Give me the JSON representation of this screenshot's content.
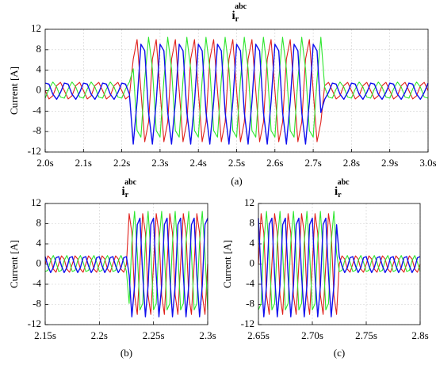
{
  "chart_data": [
    {
      "type": "line",
      "title": {
        "main": "i",
        "sub": "r",
        "sup": "abc"
      },
      "ylabel": "Current [A]",
      "caption": "(a)",
      "xlim": [
        2.0,
        3.0
      ],
      "ylim": [
        -12,
        12
      ],
      "grid": true,
      "xticks": [
        {
          "value": 2.0,
          "label": "2.0s"
        },
        {
          "value": 2.1,
          "label": "2.1s"
        },
        {
          "value": 2.2,
          "label": "2.2s"
        },
        {
          "value": 2.3,
          "label": "2.3s"
        },
        {
          "value": 2.4,
          "label": "2.4s"
        },
        {
          "value": 2.5,
          "label": "2.5s"
        },
        {
          "value": 2.6,
          "label": "2.6s"
        },
        {
          "value": 2.7,
          "label": "2.7s"
        },
        {
          "value": 2.8,
          "label": "2.8s"
        },
        {
          "value": 2.9,
          "label": "2.9s"
        },
        {
          "value": 3.0,
          "label": "3.0s"
        }
      ],
      "yticks": [
        -12,
        -8,
        -4,
        0,
        4,
        8,
        12
      ],
      "x": [
        2.0,
        2.01,
        2.02,
        2.03,
        2.04,
        2.05,
        2.06,
        2.07,
        2.08,
        2.09,
        2.1,
        2.11,
        2.12,
        2.13,
        2.14,
        2.15,
        2.16,
        2.17,
        2.18,
        2.19,
        2.2,
        2.21,
        2.22,
        2.23,
        2.24,
        2.25,
        2.26,
        2.27,
        2.28,
        2.29,
        2.3,
        2.31,
        2.32,
        2.33,
        2.34,
        2.35,
        2.36,
        2.37,
        2.38,
        2.39,
        2.4,
        2.41,
        2.42,
        2.43,
        2.44,
        2.45,
        2.46,
        2.47,
        2.48,
        2.49,
        2.5,
        2.51,
        2.52,
        2.53,
        2.54,
        2.55,
        2.56,
        2.57,
        2.58,
        2.59,
        2.6,
        2.61,
        2.62,
        2.63,
        2.64,
        2.65,
        2.66,
        2.67,
        2.68,
        2.69,
        2.7,
        2.71,
        2.72,
        2.73,
        2.74,
        2.75,
        2.76,
        2.77,
        2.78,
        2.79,
        2.8,
        2.81,
        2.82,
        2.83,
        2.84,
        2.85,
        2.86,
        2.87,
        2.88,
        2.89,
        2.9,
        2.91,
        2.92,
        2.93,
        2.94,
        2.95,
        2.96,
        2.97,
        2.98,
        2.99,
        3.0
      ],
      "series": [
        {
          "color": "#e0201b",
          "values": [
            0,
            -1.62,
            -1,
            1,
            1.62,
            0,
            -1.62,
            -1,
            1,
            1.62,
            0,
            -1.62,
            -1,
            1,
            1.62,
            0,
            -1.62,
            -1,
            1,
            1.62,
            0,
            -1.62,
            -1,
            6.17,
            9.99,
            0,
            -9.99,
            -6.17,
            6.17,
            9.99,
            0,
            -9.99,
            -6.17,
            6.17,
            9.99,
            0,
            -9.99,
            -6.17,
            6.17,
            9.99,
            0,
            -9.99,
            -6.17,
            6.17,
            9.99,
            0,
            -9.99,
            -6.17,
            6.17,
            9.99,
            0,
            -9.99,
            -6.17,
            6.17,
            9.99,
            0,
            -9.99,
            -6.17,
            6.17,
            9.99,
            0,
            -9.99,
            -6.17,
            6.17,
            9.99,
            0,
            -9.99,
            -6.17,
            6.17,
            9.99,
            0,
            -9.99,
            -6.17,
            1,
            1.62,
            0,
            -1.62,
            -1,
            1,
            1.62,
            0,
            -1.62,
            -1,
            1,
            1.62,
            0,
            -1.62,
            -1,
            1,
            1.62,
            0,
            -1.62,
            -1,
            1,
            1.62,
            0,
            -1.62,
            -1,
            1,
            1.62,
            0
          ]
        },
        {
          "color": "#2ee62e",
          "values": [
            -1.47,
            0.35,
            1.69,
            0.69,
            -1.26,
            -1.47,
            0.35,
            1.69,
            0.69,
            -1.26,
            -1.47,
            0.35,
            1.69,
            0.69,
            -1.26,
            -1.47,
            0.35,
            1.69,
            0.69,
            -1.26,
            -1.47,
            0.35,
            1.69,
            4.27,
            -7.8,
            -9.09,
            2.18,
            10.45,
            4.27,
            -7.8,
            -9.09,
            2.18,
            10.45,
            4.27,
            -7.8,
            -9.09,
            2.18,
            10.45,
            4.27,
            -7.8,
            -9.09,
            2.18,
            10.45,
            4.27,
            -7.8,
            -9.09,
            2.18,
            10.45,
            4.27,
            -7.8,
            -9.09,
            2.18,
            10.45,
            4.27,
            -7.8,
            -9.09,
            2.18,
            10.45,
            4.27,
            -7.8,
            -9.09,
            2.18,
            10.45,
            4.27,
            -7.8,
            -9.09,
            2.18,
            10.45,
            4.27,
            -7.8,
            -9.09,
            2.18,
            10.45,
            0.69,
            -1.26,
            -1.47,
            0.35,
            1.69,
            0.69,
            -1.26,
            -1.47,
            0.35,
            1.69,
            0.69,
            -1.26,
            -1.47,
            0.35,
            1.69,
            0.69,
            -1.26,
            -1.47,
            0.35,
            1.69,
            0.69,
            -1.26,
            -1.47,
            0.35,
            1.69,
            0.69,
            -1.26,
            -1.47
          ]
        },
        {
          "color": "#1010ee",
          "values": [
            1.47,
            1.26,
            -0.69,
            -1.69,
            -0.35,
            1.47,
            1.26,
            -0.69,
            -1.69,
            -0.35,
            1.47,
            1.26,
            -0.69,
            -1.69,
            -0.35,
            1.47,
            1.26,
            -0.69,
            -1.69,
            -0.35,
            1.47,
            1.26,
            -0.69,
            -10.45,
            -2.18,
            9.09,
            7.8,
            -4.27,
            -10.45,
            -2.18,
            9.09,
            7.8,
            -4.27,
            -10.45,
            -2.18,
            9.09,
            7.8,
            -4.27,
            -10.45,
            -2.18,
            9.09,
            7.8,
            -4.27,
            -10.45,
            -2.18,
            9.09,
            7.8,
            -4.27,
            -10.45,
            -2.18,
            9.09,
            7.8,
            -4.27,
            -10.45,
            -2.18,
            9.09,
            7.8,
            -4.27,
            -10.45,
            -2.18,
            9.09,
            7.8,
            -4.27,
            -10.45,
            -2.18,
            9.09,
            7.8,
            -4.27,
            -10.45,
            -2.18,
            9.09,
            7.8,
            -4.27,
            -1.69,
            -0.35,
            1.47,
            1.26,
            -0.69,
            -1.69,
            -0.35,
            1.47,
            1.26,
            -0.69,
            -1.69,
            -0.35,
            1.47,
            1.26,
            -0.69,
            -1.69,
            -0.35,
            1.47,
            1.26,
            -0.69,
            -1.69,
            -0.35,
            1.47,
            1.26,
            -0.69,
            -1.69,
            -0.35,
            1.47
          ]
        }
      ]
    },
    {
      "type": "line",
      "title": {
        "main": "i",
        "sub": "r",
        "sup": "abc"
      },
      "ylabel": "Current [A]",
      "caption": "(b)",
      "xlim": [
        2.15,
        2.3
      ],
      "ylim": [
        -12,
        12
      ],
      "grid": true,
      "xticks": [
        {
          "value": 2.15,
          "label": "2.15s"
        },
        {
          "value": 2.2,
          "label": "2.2s"
        },
        {
          "value": 2.25,
          "label": "2.25s"
        },
        {
          "value": 2.3,
          "label": "2.3s"
        }
      ],
      "yticks": [
        -12,
        -8,
        -4,
        0,
        4,
        8,
        12
      ],
      "x": [
        2.15,
        2.1525,
        2.155,
        2.1575,
        2.16,
        2.1625,
        2.165,
        2.1675,
        2.17,
        2.1725,
        2.175,
        2.1775,
        2.18,
        2.1825,
        2.185,
        2.1875,
        2.19,
        2.1925,
        2.195,
        2.1975,
        2.2,
        2.2025,
        2.205,
        2.2075,
        2.21,
        2.2125,
        2.215,
        2.2175,
        2.22,
        2.2225,
        2.225,
        2.2275,
        2.23,
        2.2325,
        2.235,
        2.2375,
        2.24,
        2.2425,
        2.245,
        2.2475,
        2.25,
        2.2525,
        2.255,
        2.2575,
        2.26,
        2.2625,
        2.265,
        2.2675,
        2.27,
        2.2725,
        2.275,
        2.2775,
        2.28,
        2.2825,
        2.285,
        2.2875,
        2.29,
        2.2925,
        2.295,
        2.2975,
        2.3
      ],
      "series": [
        {
          "color": "#e0201b",
          "values": [
            0,
            1.62,
            1,
            -1,
            -1.62,
            0,
            1.62,
            1,
            -1,
            -1.62,
            0,
            1.62,
            1,
            -1,
            -1.62,
            0,
            1.62,
            1,
            -1,
            -1.62,
            0,
            1.62,
            1,
            -1,
            -1.62,
            0,
            1.62,
            1,
            -1,
            -1.62,
            0,
            9.99,
            6.17,
            -6.17,
            -9.99,
            0,
            9.99,
            6.17,
            -6.17,
            -9.99,
            0,
            9.99,
            6.17,
            -6.17,
            -9.99,
            0,
            9.99,
            6.17,
            -6.17,
            -9.99,
            0,
            9.99,
            6.17,
            -6.17,
            -9.99,
            0,
            9.99,
            6.17,
            -6.17,
            -9.99,
            0
          ]
        },
        {
          "color": "#2ee62e",
          "values": [
            -1.47,
            -1.26,
            0.69,
            1.69,
            0.35,
            -1.47,
            -1.26,
            0.69,
            1.69,
            0.35,
            -1.47,
            -1.26,
            0.69,
            1.69,
            0.35,
            -1.47,
            -1.26,
            0.69,
            1.69,
            0.35,
            -1.47,
            -1.26,
            0.69,
            1.69,
            0.35,
            -1.47,
            -1.26,
            0.69,
            1.69,
            0.35,
            -1.47,
            -7.8,
            4.27,
            10.45,
            2.18,
            -9.09,
            -7.8,
            4.27,
            10.45,
            2.18,
            -9.09,
            -7.8,
            4.27,
            10.45,
            2.18,
            -9.09,
            -7.8,
            4.27,
            10.45,
            2.18,
            -9.09,
            -7.8,
            4.27,
            10.45,
            2.18,
            -9.09,
            -7.8,
            4.27,
            10.45,
            2.18,
            -9.09
          ]
        },
        {
          "color": "#1010ee",
          "values": [
            1.47,
            -0.35,
            -1.69,
            -0.69,
            1.26,
            1.47,
            -0.35,
            -1.69,
            -0.69,
            1.26,
            1.47,
            -0.35,
            -1.69,
            -0.69,
            1.26,
            1.47,
            -0.35,
            -1.69,
            -0.69,
            1.26,
            1.47,
            -0.35,
            -1.69,
            -0.69,
            1.26,
            1.47,
            -0.35,
            -1.69,
            -0.69,
            1.26,
            1.47,
            -2.18,
            -10.45,
            -4.27,
            7.8,
            9.09,
            -2.18,
            -10.45,
            -4.27,
            7.8,
            9.09,
            -2.18,
            -10.45,
            -4.27,
            7.8,
            9.09,
            -2.18,
            -10.45,
            -4.27,
            7.8,
            9.09,
            -2.18,
            -10.45,
            -4.27,
            7.8,
            9.09,
            -2.18,
            -10.45,
            -4.27,
            7.8,
            9.09
          ]
        }
      ]
    },
    {
      "type": "line",
      "title": {
        "main": "i",
        "sub": "r",
        "sup": "abc"
      },
      "ylabel": "Current [A]",
      "caption": "(c)",
      "xlim": [
        2.65,
        2.8
      ],
      "ylim": [
        -12,
        12
      ],
      "grid": true,
      "xticks": [
        {
          "value": 2.65,
          "label": "2.65s"
        },
        {
          "value": 2.7,
          "label": "2.70s"
        },
        {
          "value": 2.75,
          "label": "2.75s"
        },
        {
          "value": 2.8,
          "label": "2.8s"
        }
      ],
      "yticks": [
        -12,
        -8,
        -4,
        0,
        4,
        8,
        12
      ],
      "x": [
        2.65,
        2.6525,
        2.655,
        2.6575,
        2.66,
        2.6625,
        2.665,
        2.6675,
        2.67,
        2.6725,
        2.675,
        2.6775,
        2.68,
        2.6825,
        2.685,
        2.6875,
        2.69,
        2.6925,
        2.695,
        2.6975,
        2.7,
        2.7025,
        2.705,
        2.7075,
        2.71,
        2.7125,
        2.715,
        2.7175,
        2.72,
        2.7225,
        2.725,
        2.7275,
        2.73,
        2.7325,
        2.735,
        2.7375,
        2.74,
        2.7425,
        2.745,
        2.7475,
        2.75,
        2.7525,
        2.755,
        2.7575,
        2.76,
        2.7625,
        2.765,
        2.7675,
        2.77,
        2.7725,
        2.775,
        2.7775,
        2.78,
        2.7825,
        2.785,
        2.7875,
        2.79,
        2.7925,
        2.795,
        2.7975,
        2.8
      ],
      "series": [
        {
          "color": "#e0201b",
          "values": [
            0,
            9.99,
            6.17,
            -6.17,
            -9.99,
            0,
            9.99,
            6.17,
            -6.17,
            -9.99,
            0,
            9.99,
            6.17,
            -6.17,
            -9.99,
            0,
            9.99,
            6.17,
            -6.17,
            -9.99,
            0,
            9.99,
            6.17,
            -6.17,
            -9.99,
            0,
            9.99,
            6.17,
            -6.17,
            -9.99,
            0,
            1.62,
            1,
            -1,
            -1.62,
            0,
            1.62,
            1,
            -1,
            -1.62,
            0,
            1.62,
            1,
            -1,
            -1.62,
            0,
            1.62,
            1,
            -1,
            -1.62,
            0,
            1.62,
            1,
            -1,
            -1.62,
            0,
            1.62,
            1,
            -1,
            -1.62,
            0
          ]
        },
        {
          "color": "#2ee62e",
          "values": [
            -9.09,
            -7.8,
            4.27,
            10.45,
            2.18,
            -9.09,
            -7.8,
            4.27,
            10.45,
            2.18,
            -9.09,
            -7.8,
            4.27,
            10.45,
            2.18,
            -9.09,
            -7.8,
            4.27,
            10.45,
            2.18,
            -9.09,
            -7.8,
            4.27,
            10.45,
            2.18,
            -9.09,
            -7.8,
            4.27,
            10.45,
            2.18,
            -1.47,
            -1.26,
            0.69,
            1.69,
            0.35,
            -1.47,
            -1.26,
            0.69,
            1.69,
            0.35,
            -1.47,
            -1.26,
            0.69,
            1.69,
            0.35,
            -1.47,
            -1.26,
            0.69,
            1.69,
            0.35,
            -1.47,
            -1.26,
            0.69,
            1.69,
            0.35,
            -1.47,
            -1.26,
            0.69,
            1.69,
            0.35,
            -1.47
          ]
        },
        {
          "color": "#1010ee",
          "values": [
            9.09,
            -2.18,
            -10.45,
            -4.27,
            7.8,
            9.09,
            -2.18,
            -10.45,
            -4.27,
            7.8,
            9.09,
            -2.18,
            -10.45,
            -4.27,
            7.8,
            9.09,
            -2.18,
            -10.45,
            -4.27,
            7.8,
            9.09,
            -2.18,
            -10.45,
            -4.27,
            7.8,
            9.09,
            -2.18,
            -10.45,
            -4.27,
            7.8,
            1.47,
            -0.35,
            -1.69,
            -0.69,
            1.26,
            1.47,
            -0.35,
            -1.69,
            -0.69,
            1.26,
            1.47,
            -0.35,
            -1.69,
            -0.69,
            1.26,
            1.47,
            -0.35,
            -1.69,
            -0.69,
            1.26,
            1.47,
            -0.35,
            -1.69,
            -0.69,
            1.26,
            1.47,
            -0.35,
            -1.69,
            -0.69,
            1.26,
            1.47
          ]
        }
      ]
    }
  ]
}
